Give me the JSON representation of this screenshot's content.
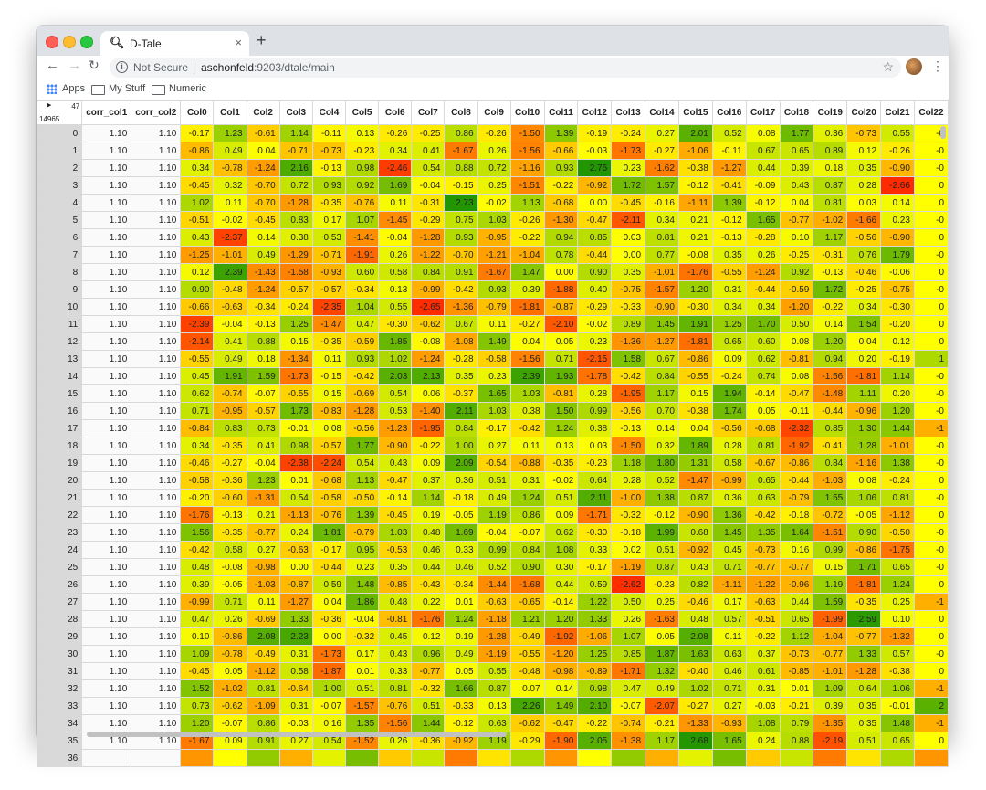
{
  "browser": {
    "tab_title": "D-Tale",
    "tab_icon": "search-icon",
    "close_glyph": "×",
    "new_tab_glyph": "+",
    "not_secure": "Not Secure",
    "url_host": "aschonfeld",
    "url_path": ":9203/dtale/main",
    "bookmarks": [
      "Apps",
      "My Stuff",
      "Numeric"
    ]
  },
  "grid": {
    "corner_cols": "47",
    "corner_rows": "14965",
    "columns": [
      "corr_col1",
      "corr_col2",
      "Col0",
      "Col1",
      "Col2",
      "Col3",
      "Col4",
      "Col5",
      "Col6",
      "Col7",
      "Col8",
      "Col9",
      "Col10",
      "Col11",
      "Col12",
      "Col13",
      "Col14",
      "Col15",
      "Col16",
      "Col17",
      "Col18",
      "Col19",
      "Col20",
      "Col21",
      "Col22"
    ],
    "rows": [
      [
        "0",
        "1.10",
        "1.10",
        "-0.17",
        "1.23",
        "-0.61",
        "1.14",
        "-0.11",
        "0.13",
        "-0.26",
        "-0.25",
        "0.86",
        "-0.26",
        "-1.50",
        "1.39",
        "-0.19",
        "-0.24",
        "0.27",
        "2.01",
        "0.52",
        "0.08",
        "1.77",
        "0.36",
        "-0.73",
        "0.55",
        "-0"
      ],
      [
        "1",
        "1.10",
        "1.10",
        "-0.86",
        "0.49",
        "0.04",
        "-0.71",
        "-0.73",
        "-0.23",
        "0.34",
        "0.41",
        "-1.67",
        "0.26",
        "-1.56",
        "-0.66",
        "-0.03",
        "-1.73",
        "-0.27",
        "-1.06",
        "-0.11",
        "0.67",
        "0.65",
        "0.89",
        "0.12",
        "-0.26",
        "-0"
      ],
      [
        "2",
        "1.10",
        "1.10",
        "0.34",
        "-0.78",
        "-1.24",
        "2.16",
        "-0.13",
        "0.98",
        "-2.46",
        "0.54",
        "0.88",
        "0.72",
        "-1.16",
        "0.93",
        "2.75",
        "0.23",
        "-1.62",
        "-0.38",
        "-1.27",
        "0.44",
        "0.39",
        "0.18",
        "0.35",
        "-0.90",
        "-0"
      ],
      [
        "3",
        "1.10",
        "1.10",
        "-0.45",
        "0.32",
        "-0.70",
        "0.72",
        "0.93",
        "0.92",
        "1.69",
        "-0.04",
        "-0.15",
        "0.25",
        "-1.51",
        "-0.22",
        "-0.92",
        "1.72",
        "1.57",
        "-0.12",
        "-0.41",
        "-0.09",
        "0.43",
        "0.87",
        "0.28",
        "-2.66",
        "0"
      ],
      [
        "4",
        "1.10",
        "1.10",
        "1.02",
        "0.11",
        "-0.70",
        "-1.28",
        "-0.35",
        "-0.76",
        "0.11",
        "-0.31",
        "2.73",
        "-0.02",
        "1.13",
        "-0.68",
        "0.00",
        "-0.45",
        "-0.16",
        "-1.11",
        "1.39",
        "-0.12",
        "0.04",
        "0.81",
        "0.03",
        "0.14",
        "0"
      ],
      [
        "5",
        "1.10",
        "1.10",
        "-0.51",
        "-0.02",
        "-0.45",
        "0.83",
        "0.17",
        "1.07",
        "-1.45",
        "-0.29",
        "0.75",
        "1.03",
        "-0.26",
        "-1.30",
        "-0.47",
        "-2.11",
        "0.34",
        "0.21",
        "-0.12",
        "1.65",
        "-0.77",
        "-1.02",
        "-1.66",
        "0.23",
        "-0"
      ],
      [
        "6",
        "1.10",
        "1.10",
        "0.43",
        "-2.37",
        "0.14",
        "0.38",
        "0.53",
        "-1.41",
        "-0.04",
        "-1.28",
        "0.93",
        "-0.95",
        "-0.22",
        "0.94",
        "0.85",
        "0.03",
        "0.81",
        "0.21",
        "-0.13",
        "-0.28",
        "0.10",
        "1.17",
        "-0.56",
        "-0.90",
        "0"
      ],
      [
        "7",
        "1.10",
        "1.10",
        "-1.25",
        "-1.01",
        "0.49",
        "-1.29",
        "-0.71",
        "-1.91",
        "0.26",
        "-1.22",
        "-0.70",
        "-1.21",
        "-1.04",
        "0.78",
        "-0.44",
        "0.00",
        "0.77",
        "-0.08",
        "0.35",
        "0.26",
        "-0.25",
        "-0.31",
        "0.76",
        "1.79",
        "-0"
      ],
      [
        "8",
        "1.10",
        "1.10",
        "0.12",
        "2.39",
        "-1.43",
        "-1.58",
        "-0.93",
        "0.60",
        "0.58",
        "0.84",
        "0.91",
        "-1.67",
        "1.47",
        "0.00",
        "0.90",
        "0.35",
        "-1.01",
        "-1.76",
        "-0.55",
        "-1.24",
        "0.92",
        "-0.13",
        "-0.46",
        "-0.06",
        "0"
      ],
      [
        "9",
        "1.10",
        "1.10",
        "0.90",
        "-0.48",
        "-1.24",
        "-0.57",
        "-0.57",
        "-0.34",
        "0.13",
        "-0.99",
        "-0.42",
        "0.93",
        "0.39",
        "-1.88",
        "0.40",
        "-0.75",
        "-1.57",
        "1.20",
        "0.31",
        "-0.44",
        "-0.59",
        "1.72",
        "-0.25",
        "-0.75",
        "-0"
      ],
      [
        "10",
        "1.10",
        "1.10",
        "-0.66",
        "-0.63",
        "-0.34",
        "-0.24",
        "-2.35",
        "1.04",
        "0.55",
        "-2.65",
        "-1.36",
        "-0.79",
        "-1.81",
        "-0.87",
        "-0.29",
        "-0.33",
        "-0.90",
        "-0.30",
        "0.34",
        "0.34",
        "-1.20",
        "-0.22",
        "0.34",
        "-0.30",
        "0"
      ],
      [
        "11",
        "1.10",
        "1.10",
        "-2.39",
        "-0.04",
        "-0.13",
        "1.25",
        "-1.47",
        "0.47",
        "-0.30",
        "-0.62",
        "0.67",
        "0.11",
        "-0.27",
        "-2.10",
        "-0.02",
        "0.89",
        "1.45",
        "1.91",
        "1.25",
        "1.70",
        "0.50",
        "0.14",
        "1.54",
        "-0.20",
        "0"
      ],
      [
        "12",
        "1.10",
        "1.10",
        "-2.14",
        "0.41",
        "0.88",
        "0.15",
        "-0.35",
        "-0.59",
        "1.85",
        "-0.08",
        "-1.08",
        "1.49",
        "0.04",
        "0.05",
        "0.23",
        "-1.36",
        "-1.27",
        "-1.81",
        "0.65",
        "0.60",
        "0.08",
        "1.20",
        "0.04",
        "0.12",
        "0"
      ],
      [
        "13",
        "1.10",
        "1.10",
        "-0.55",
        "0.49",
        "0.18",
        "-1.34",
        "0.11",
        "0.93",
        "1.02",
        "-1.24",
        "-0.28",
        "-0.58",
        "-1.56",
        "0.71",
        "-2.15",
        "1.58",
        "0.67",
        "-0.86",
        "0.09",
        "0.62",
        "-0.81",
        "0.94",
        "0.20",
        "-0.19",
        "1"
      ],
      [
        "14",
        "1.10",
        "1.10",
        "0.45",
        "1.91",
        "1.59",
        "-1.73",
        "-0.15",
        "-0.42",
        "2.03",
        "2.13",
        "0.35",
        "0.23",
        "2.39",
        "1.93",
        "-1.78",
        "-0.42",
        "0.84",
        "-0.55",
        "-0.24",
        "0.74",
        "0.08",
        "-1.56",
        "-1.81",
        "1.14",
        "-0"
      ],
      [
        "15",
        "1.10",
        "1.10",
        "0.62",
        "-0.74",
        "-0.07",
        "-0.55",
        "0.15",
        "-0.69",
        "0.54",
        "0.06",
        "-0.37",
        "1.65",
        "1.03",
        "-0.81",
        "0.28",
        "-1.95",
        "1.17",
        "0.15",
        "1.94",
        "-0.14",
        "-0.47",
        "-1.48",
        "1.11",
        "0.20",
        "-0"
      ],
      [
        "16",
        "1.10",
        "1.10",
        "0.71",
        "-0.95",
        "-0.57",
        "1.73",
        "-0.83",
        "-1.28",
        "0.53",
        "-1.40",
        "2.11",
        "1.03",
        "0.38",
        "1.50",
        "0.99",
        "-0.56",
        "0.70",
        "-0.38",
        "1.74",
        "0.05",
        "-0.11",
        "-0.44",
        "-0.96",
        "1.20",
        "-0"
      ],
      [
        "17",
        "1.10",
        "1.10",
        "-0.84",
        "0.83",
        "0.73",
        "-0.01",
        "0.08",
        "-0.56",
        "-1.23",
        "-1.95",
        "0.84",
        "-0.17",
        "-0.42",
        "1.24",
        "0.38",
        "-0.13",
        "0.14",
        "0.04",
        "-0.56",
        "-0.68",
        "-2.32",
        "0.85",
        "1.30",
        "1.44",
        "-1"
      ],
      [
        "18",
        "1.10",
        "1.10",
        "0.34",
        "-0.35",
        "0.41",
        "0.98",
        "-0.57",
        "1.77",
        "-0.90",
        "-0.22",
        "1.00",
        "0.27",
        "0.11",
        "0.13",
        "0.03",
        "-1.50",
        "0.32",
        "1.89",
        "0.28",
        "0.81",
        "-1.92",
        "-0.41",
        "1.28",
        "-1.01",
        "-0"
      ],
      [
        "19",
        "1.10",
        "1.10",
        "-0.46",
        "-0.27",
        "-0.04",
        "-2.38",
        "-2.24",
        "0.54",
        "0.43",
        "0.09",
        "2.09",
        "-0.54",
        "-0.88",
        "-0.35",
        "-0.23",
        "1.18",
        "1.80",
        "1.31",
        "0.58",
        "-0.67",
        "-0.86",
        "0.84",
        "-1.16",
        "1.38",
        "-0"
      ],
      [
        "20",
        "1.10",
        "1.10",
        "-0.58",
        "-0.36",
        "1.23",
        "0.01",
        "-0.68",
        "1.13",
        "-0.47",
        "0.37",
        "0.36",
        "0.51",
        "0.31",
        "-0.02",
        "0.64",
        "0.28",
        "0.52",
        "-1.47",
        "-0.99",
        "0.65",
        "-0.44",
        "-1.03",
        "0.08",
        "-0.24",
        "0"
      ],
      [
        "21",
        "1.10",
        "1.10",
        "-0.20",
        "-0.60",
        "-1.31",
        "0.54",
        "-0.58",
        "-0.50",
        "-0.14",
        "1.14",
        "-0.18",
        "0.49",
        "1.24",
        "0.51",
        "2.11",
        "-1.00",
        "1.38",
        "0.87",
        "0.36",
        "0.63",
        "-0.79",
        "1.55",
        "1.06",
        "0.81",
        "-0"
      ],
      [
        "22",
        "1.10",
        "1.10",
        "-1.76",
        "-0.13",
        "0.21",
        "-1.13",
        "-0.76",
        "1.39",
        "-0.45",
        "0.19",
        "-0.05",
        "1.19",
        "0.86",
        "0.09",
        "-1.71",
        "-0.32",
        "-0.12",
        "-0.90",
        "1.36",
        "-0.42",
        "-0.18",
        "-0.72",
        "-0.05",
        "-1.12",
        "0"
      ],
      [
        "23",
        "1.10",
        "1.10",
        "1.56",
        "-0.35",
        "-0.77",
        "0.24",
        "1.81",
        "-0.79",
        "1.03",
        "0.48",
        "1.69",
        "-0.04",
        "-0.07",
        "0.62",
        "-0.30",
        "-0.18",
        "1.99",
        "0.68",
        "1.45",
        "1.35",
        "1.64",
        "-1.51",
        "0.90",
        "-0.50",
        "-0"
      ],
      [
        "24",
        "1.10",
        "1.10",
        "-0.42",
        "0.58",
        "0.27",
        "-0.63",
        "-0.17",
        "0.95",
        "-0.53",
        "0.46",
        "0.33",
        "0.99",
        "0.84",
        "1.08",
        "0.33",
        "0.02",
        "0.51",
        "-0.92",
        "0.45",
        "-0.73",
        "0.16",
        "0.99",
        "-0.86",
        "-1.75",
        "-0"
      ],
      [
        "25",
        "1.10",
        "1.10",
        "0.48",
        "-0.08",
        "-0.98",
        "0.00",
        "-0.44",
        "0.23",
        "0.35",
        "0.44",
        "0.46",
        "0.52",
        "0.90",
        "0.30",
        "-0.17",
        "-1.19",
        "0.87",
        "0.43",
        "0.71",
        "-0.77",
        "-0.77",
        "0.15",
        "1.71",
        "0.65",
        "-0"
      ],
      [
        "26",
        "1.10",
        "1.10",
        "0.39",
        "-0.05",
        "-1.03",
        "-0.87",
        "0.59",
        "1.48",
        "-0.85",
        "-0.43",
        "-0.34",
        "-1.44",
        "-1.68",
        "0.44",
        "0.59",
        "-2.62",
        "-0.23",
        "0.82",
        "-1.11",
        "-1.22",
        "-0.96",
        "1.19",
        "-1.81",
        "1.24",
        "0"
      ],
      [
        "27",
        "1.10",
        "1.10",
        "-0.99",
        "0.71",
        "0.11",
        "-1.27",
        "0.04",
        "1.86",
        "0.48",
        "0.22",
        "0.01",
        "-0.63",
        "-0.65",
        "-0.14",
        "1.22",
        "0.50",
        "0.25",
        "-0.46",
        "0.17",
        "-0.63",
        "0.44",
        "1.59",
        "-0.35",
        "0.25",
        "-1"
      ],
      [
        "28",
        "1.10",
        "1.10",
        "0.47",
        "0.26",
        "-0.69",
        "1.33",
        "-0.36",
        "-0.04",
        "-0.81",
        "-1.76",
        "1.24",
        "-1.18",
        "1.21",
        "1.20",
        "1.33",
        "0.26",
        "-1.63",
        "0.48",
        "0.57",
        "-0.51",
        "0.65",
        "-1.99",
        "2.59",
        "0.10",
        "0"
      ],
      [
        "29",
        "1.10",
        "1.10",
        "0.10",
        "-0.86",
        "2.08",
        "2.23",
        "0.00",
        "-0.32",
        "0.45",
        "0.12",
        "0.19",
        "-1.28",
        "-0.49",
        "-1.92",
        "-1.06",
        "1.07",
        "0.05",
        "2.08",
        "0.11",
        "-0.22",
        "1.12",
        "-1.04",
        "-0.77",
        "-1.32",
        "0"
      ],
      [
        "30",
        "1.10",
        "1.10",
        "1.09",
        "-0.78",
        "-0.49",
        "0.31",
        "-1.73",
        "0.17",
        "0.43",
        "0.96",
        "0.49",
        "-1.19",
        "-0.55",
        "-1.20",
        "1.25",
        "0.85",
        "1.87",
        "1.63",
        "0.63",
        "0.37",
        "-0.73",
        "-0.77",
        "1.33",
        "0.57",
        "-0"
      ],
      [
        "31",
        "1.10",
        "1.10",
        "-0.45",
        "0.05",
        "-1.12",
        "0.58",
        "-1.87",
        "0.01",
        "0.33",
        "-0.77",
        "0.05",
        "0.55",
        "-0.48",
        "-0.98",
        "-0.89",
        "-1.71",
        "1.32",
        "-0.40",
        "0.46",
        "0.61",
        "-0.85",
        "-1.01",
        "-1.28",
        "-0.38",
        "0"
      ],
      [
        "32",
        "1.10",
        "1.10",
        "1.52",
        "-1.02",
        "0.81",
        "-0.64",
        "1.00",
        "0.51",
        "0.81",
        "-0.32",
        "1.66",
        "0.87",
        "0.07",
        "0.14",
        "0.98",
        "0.47",
        "0.49",
        "1.02",
        "0.71",
        "0.31",
        "0.01",
        "1.09",
        "0.64",
        "1.06",
        "-1"
      ],
      [
        "33",
        "1.10",
        "1.10",
        "0.73",
        "-0.62",
        "-1.09",
        "0.31",
        "-0.07",
        "-1.57",
        "-0.76",
        "0.51",
        "-0.33",
        "0.13",
        "2.26",
        "1.49",
        "2.10",
        "-0.07",
        "-2.07",
        "-0.27",
        "0.27",
        "-0.03",
        "-0.21",
        "0.39",
        "0.35",
        "-0.01",
        "2"
      ],
      [
        "34",
        "1.10",
        "1.10",
        "1.20",
        "-0.07",
        "0.86",
        "-0.03",
        "0.16",
        "1.35",
        "-1.56",
        "1.44",
        "-0.12",
        "0.63",
        "-0.62",
        "-0.47",
        "-0.22",
        "-0.74",
        "-0.21",
        "-1.33",
        "-0.93",
        "1.08",
        "0.79",
        "-1.35",
        "0.35",
        "1.48",
        "-1"
      ],
      [
        "35",
        "1.10",
        "1.10",
        "-1.67",
        "0.09",
        "0.91",
        "0.27",
        "0.54",
        "-1.52",
        "0.26",
        "-0.36",
        "-0.92",
        "1.19",
        "-0.29",
        "-1.90",
        "2.05",
        "-1.38",
        "1.17",
        "2.68",
        "1.65",
        "0.24",
        "0.88",
        "-2.19",
        "0.51",
        "0.65",
        "0"
      ]
    ],
    "partial_row_index": "36"
  }
}
